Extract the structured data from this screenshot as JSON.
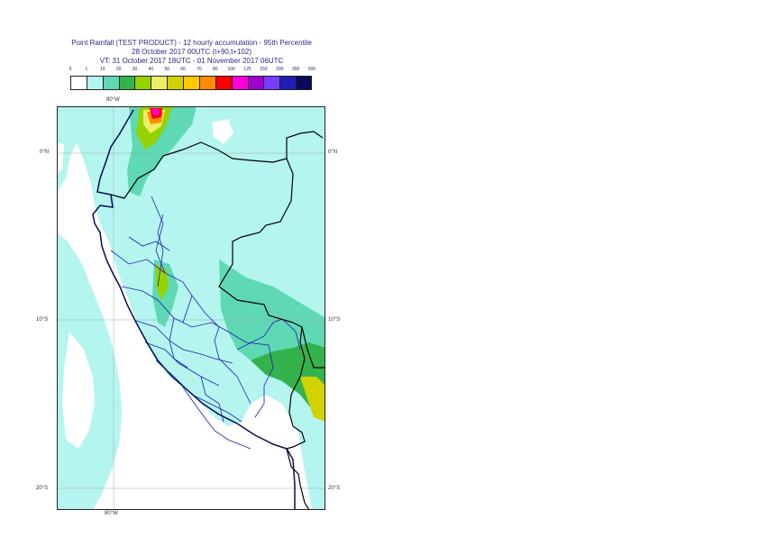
{
  "title": {
    "line1": "Point Rainfall (TEST PRODUCT) - 12 hourly accumulation - 95th Percentile",
    "line2": "28 October 2017 00UTC (t+90,t+102)",
    "line3": "VT: 31 October 2017 18UTC - 01 November 2017 06UTC"
  },
  "legend": {
    "thresholds": [
      "0",
      "1",
      "10",
      "20",
      "30",
      "40",
      "50",
      "60",
      "70",
      "80",
      "100",
      "125",
      "150",
      "200",
      "300",
      "500"
    ],
    "colors": [
      "#ffffff",
      "#b4f5f0",
      "#5fd8b4",
      "#34b24c",
      "#96d200",
      "#eeee66",
      "#d2d200",
      "#ffc800",
      "#ff8c00",
      "#ff0000",
      "#ff00dc",
      "#a000d2",
      "#7a3cff",
      "#1e1eb4",
      "#0a0a5a"
    ]
  },
  "map": {
    "lat_labels": [
      "0°N",
      "10°S",
      "20°S"
    ],
    "lon_label_top": "80°W",
    "lon_label_bottom": "80°W"
  }
}
